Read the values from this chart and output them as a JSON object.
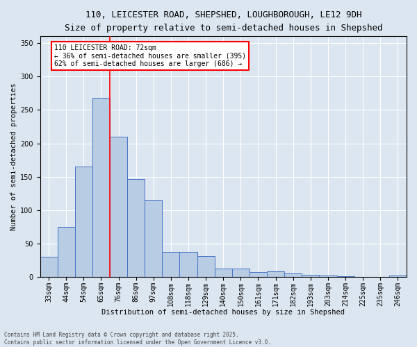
{
  "title_line1": "110, LEICESTER ROAD, SHEPSHED, LOUGHBOROUGH, LE12 9DH",
  "title_line2": "Size of property relative to semi-detached houses in Shepshed",
  "xlabel": "Distribution of semi-detached houses by size in Shepshed",
  "ylabel": "Number of semi-detached properties",
  "categories": [
    "33sqm",
    "44sqm",
    "54sqm",
    "65sqm",
    "76sqm",
    "86sqm",
    "97sqm",
    "108sqm",
    "118sqm",
    "129sqm",
    "140sqm",
    "150sqm",
    "161sqm",
    "171sqm",
    "182sqm",
    "193sqm",
    "203sqm",
    "214sqm",
    "225sqm",
    "235sqm",
    "246sqm"
  ],
  "values": [
    30,
    75,
    165,
    268,
    210,
    147,
    115,
    38,
    38,
    31,
    13,
    13,
    8,
    9,
    6,
    3,
    2,
    1,
    0,
    0,
    2
  ],
  "bar_color": "#b8cce4",
  "bar_edge_color": "#4472c4",
  "bg_color": "#dce6f1",
  "red_line_bar_index": 3,
  "annotation_text": "110 LEICESTER ROAD: 72sqm\n← 36% of semi-detached houses are smaller (395)\n62% of semi-detached houses are larger (686) →",
  "annotation_box_color": "white",
  "annotation_box_edge": "red",
  "footer_line1": "Contains HM Land Registry data © Crown copyright and database right 2025.",
  "footer_line2": "Contains public sector information licensed under the Open Government Licence v3.0.",
  "ylim": [
    0,
    360
  ],
  "yticks": [
    0,
    50,
    100,
    150,
    200,
    250,
    300,
    350
  ],
  "title1_fontsize": 9,
  "title2_fontsize": 8,
  "ylabel_fontsize": 7.5,
  "xlabel_fontsize": 7.5,
  "tick_fontsize": 7,
  "annot_fontsize": 7
}
